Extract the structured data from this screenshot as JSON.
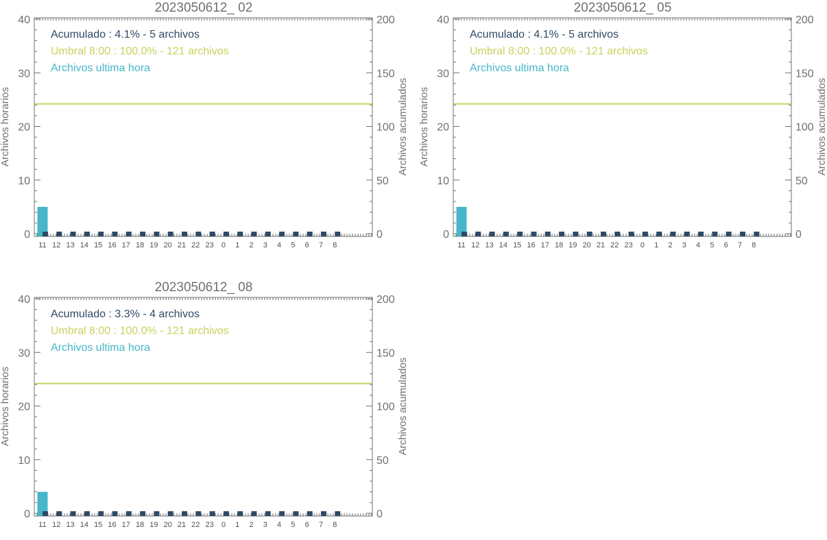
{
  "colors": {
    "accumulated": "#2e4a66",
    "threshold": "#c8d25c",
    "hourly": "#47b6c8",
    "axis": "#707070",
    "marker": "#2e4a66"
  },
  "chart_data": [
    {
      "type": "bar",
      "title": "2023050612_ 02",
      "ylabel_left": "Archivos horarios",
      "ylabel_right": "Archivos acumulados",
      "ylim_left": [
        0,
        40
      ],
      "ylim_right": [
        0,
        200
      ],
      "yticks_left": [
        "0",
        "10",
        "20",
        "30",
        "40"
      ],
      "yticks_right": [
        "0",
        "50",
        "100",
        "150",
        "200"
      ],
      "categories": [
        "11",
        "12",
        "13",
        "14",
        "15",
        "16",
        "17",
        "18",
        "19",
        "20",
        "21",
        "22",
        "23",
        "0",
        "1",
        "2",
        "3",
        "4",
        "5",
        "6",
        "7",
        "8"
      ],
      "series": [
        {
          "name": "Archivos ultima hora",
          "values": [
            5,
            0,
            0,
            0,
            0,
            0,
            0,
            0,
            0,
            0,
            0,
            0,
            0,
            0,
            0,
            0,
            0,
            0,
            0,
            0,
            0,
            0
          ]
        }
      ],
      "threshold_value": 121,
      "legend": [
        "Acumulado : 4.1% - 5 archivos",
        "Umbral 8:00 : 100.0% - 121 archivos",
        "Archivos ultima hora"
      ],
      "legend_position": "top-left",
      "grid": false
    },
    {
      "type": "bar",
      "title": "2023050612_ 05",
      "ylabel_left": "Archivos horarios",
      "ylabel_right": "Archivos acumulados",
      "ylim_left": [
        0,
        40
      ],
      "ylim_right": [
        0,
        200
      ],
      "yticks_left": [
        "0",
        "10",
        "20",
        "30",
        "40"
      ],
      "yticks_right": [
        "0",
        "50",
        "100",
        "150",
        "200"
      ],
      "categories": [
        "11",
        "12",
        "13",
        "14",
        "15",
        "16",
        "17",
        "18",
        "19",
        "20",
        "21",
        "22",
        "23",
        "0",
        "1",
        "2",
        "3",
        "4",
        "5",
        "6",
        "7",
        "8"
      ],
      "series": [
        {
          "name": "Archivos ultima hora",
          "values": [
            5,
            0,
            0,
            0,
            0,
            0,
            0,
            0,
            0,
            0,
            0,
            0,
            0,
            0,
            0,
            0,
            0,
            0,
            0,
            0,
            0,
            0
          ]
        }
      ],
      "threshold_value": 121,
      "legend": [
        "Acumulado : 4.1% - 5 archivos",
        "Umbral 8:00 : 100.0% - 121 archivos",
        "Archivos ultima hora"
      ],
      "legend_position": "top-left",
      "grid": false
    },
    {
      "type": "bar",
      "title": "2023050612_ 08",
      "ylabel_left": "Archivos horarios",
      "ylabel_right": "Archivos acumulados",
      "ylim_left": [
        0,
        40
      ],
      "ylim_right": [
        0,
        200
      ],
      "yticks_left": [
        "0",
        "10",
        "20",
        "30",
        "40"
      ],
      "yticks_right": [
        "0",
        "50",
        "100",
        "150",
        "200"
      ],
      "categories": [
        "11",
        "12",
        "13",
        "14",
        "15",
        "16",
        "17",
        "18",
        "19",
        "20",
        "21",
        "22",
        "23",
        "0",
        "1",
        "2",
        "3",
        "4",
        "5",
        "6",
        "7",
        "8"
      ],
      "series": [
        {
          "name": "Archivos ultima hora",
          "values": [
            4,
            0,
            0,
            0,
            0,
            0,
            0,
            0,
            0,
            0,
            0,
            0,
            0,
            0,
            0,
            0,
            0,
            0,
            0,
            0,
            0,
            0
          ]
        }
      ],
      "threshold_value": 121,
      "legend": [
        "Acumulado : 3.3% - 4 archivos",
        "Umbral 8:00 : 100.0% - 121 archivos",
        "Archivos ultima hora"
      ],
      "legend_position": "top-left",
      "grid": false
    }
  ]
}
